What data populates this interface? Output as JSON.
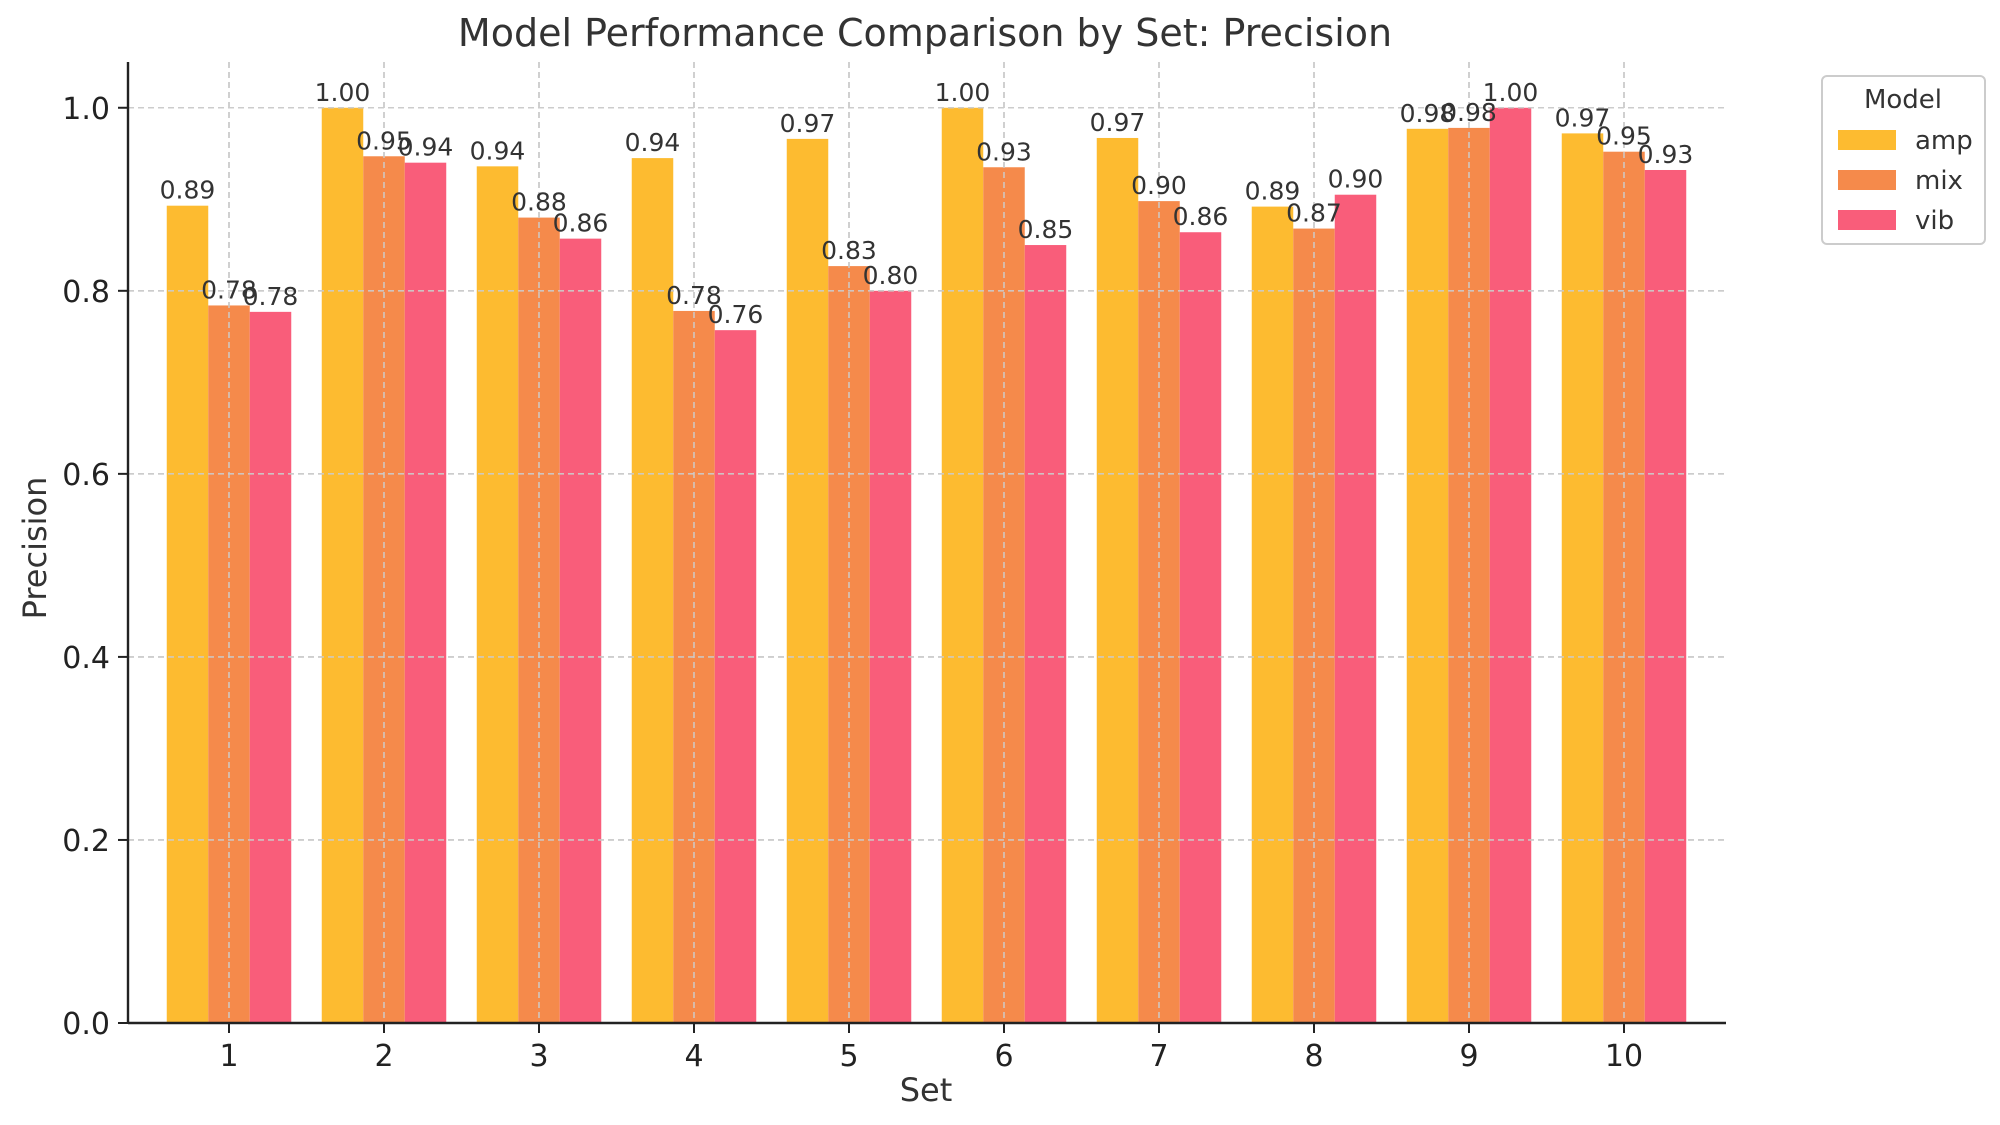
{
  "chart_data": {
    "type": "bar",
    "title": "Model Performance Comparison by Set: Precision",
    "xlabel": "Set",
    "ylabel": "Precision",
    "categories": [
      "1",
      "2",
      "3",
      "4",
      "5",
      "6",
      "7",
      "8",
      "9",
      "10"
    ],
    "ylim": [
      0,
      1.05
    ],
    "yticks": [
      "0.0",
      "0.2",
      "0.4",
      "0.6",
      "0.8",
      "1.0"
    ],
    "grid": true,
    "legend": {
      "title": "Model",
      "position": "top-right, outside plot"
    },
    "series": [
      {
        "name": "amp",
        "color": "#FDBB30",
        "values": [
          0.893,
          1.0,
          0.936,
          0.945,
          0.966,
          1.0,
          0.967,
          0.892,
          0.977,
          0.972
        ],
        "labels": [
          "0.89",
          "1.00",
          "0.94",
          "0.94",
          "0.97",
          "1.00",
          "0.97",
          "0.89",
          "0.98",
          "0.97"
        ]
      },
      {
        "name": "mix",
        "color": "#F58A4B",
        "values": [
          0.784,
          0.947,
          0.88,
          0.778,
          0.827,
          0.935,
          0.898,
          0.868,
          0.978,
          0.952
        ],
        "labels": [
          "0.78",
          "0.95",
          "0.88",
          "0.78",
          "0.83",
          "0.93",
          "0.90",
          "0.87",
          "0.98",
          "0.95"
        ]
      },
      {
        "name": "vib",
        "color": "#F95D7A",
        "values": [
          0.777,
          0.94,
          0.857,
          0.757,
          0.8,
          0.85,
          0.864,
          0.905,
          1.0,
          0.932
        ],
        "labels": [
          "0.78",
          "0.94",
          "0.86",
          "0.76",
          "0.80",
          "0.85",
          "0.86",
          "0.90",
          "1.00",
          "0.93"
        ]
      }
    ]
  }
}
